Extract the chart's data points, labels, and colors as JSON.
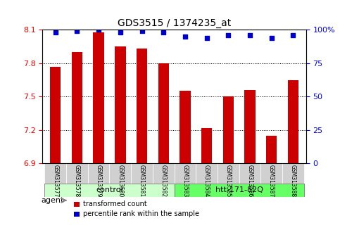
{
  "title": "GDS3515 / 1374235_at",
  "categories": [
    "GSM313577",
    "GSM313578",
    "GSM313579",
    "GSM313580",
    "GSM313581",
    "GSM313582",
    "GSM313583",
    "GSM313584",
    "GSM313585",
    "GSM313586",
    "GSM313587",
    "GSM313588"
  ],
  "bar_values": [
    7.77,
    7.9,
    8.08,
    7.95,
    7.93,
    7.8,
    7.55,
    7.22,
    7.5,
    7.56,
    7.15,
    7.65
  ],
  "percentile_values": [
    98,
    99,
    100,
    98,
    99,
    98,
    95,
    94,
    96,
    96,
    94,
    96
  ],
  "bar_color": "#cc0000",
  "dot_color": "#0000cc",
  "ylim_left": [
    6.9,
    8.1
  ],
  "ylim_right": [
    0,
    100
  ],
  "yticks_left": [
    6.9,
    7.2,
    7.5,
    7.8,
    8.1
  ],
  "yticks_right": [
    0,
    25,
    50,
    75,
    100
  ],
  "ytick_labels_left": [
    "6.9",
    "7.2",
    "7.5",
    "7.8",
    "8.1"
  ],
  "ytick_labels_right": [
    "0",
    "25",
    "50",
    "75",
    "100%"
  ],
  "grid_values": [
    7.8,
    7.5,
    7.2
  ],
  "group1_label": "control",
  "group2_label": "htt-171-82Q",
  "group1_indices": [
    0,
    1,
    2,
    3,
    4,
    5
  ],
  "group2_indices": [
    6,
    7,
    8,
    9,
    10,
    11
  ],
  "agent_label": "agent",
  "legend1_label": "transformed count",
  "legend2_label": "percentile rank within the sample",
  "bar_width": 0.5,
  "group1_color": "#ccffcc",
  "group2_color": "#66ff66",
  "plot_bg": "#ffffff",
  "xlabel_area_color": "#cccccc"
}
